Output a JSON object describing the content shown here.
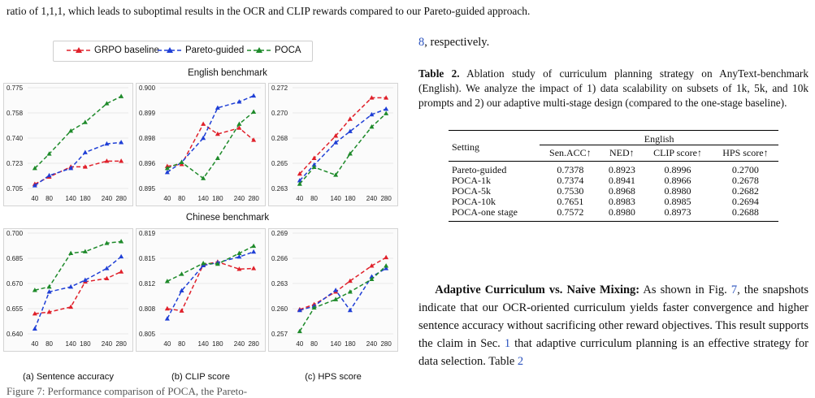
{
  "top_text": "ratio of 1,1,1, which leads to suboptimal results in the OCR and CLIP rewards compared to our Pareto-guided approach.",
  "legend": [
    {
      "label": "GRPO baseline",
      "color": "#e0202a"
    },
    {
      "label": "Pareto-guided",
      "color": "#1f3fd6"
    },
    {
      "label": "POCA",
      "color": "#1e8a2a"
    }
  ],
  "benchmarks": {
    "english": "English benchmark",
    "chinese": "Chinese benchmark"
  },
  "x_ticks": [
    "40",
    "80",
    "140",
    "180",
    "240",
    "280"
  ],
  "sub_captions": [
    "(a) Sentence accuracy",
    "(b) CLIP score",
    "(c) HPS score"
  ],
  "figure_caption": "Figure 7: Performance comparison of POCA, the Pareto-",
  "chart_data": [
    {
      "type": "line",
      "benchmark": "English benchmark",
      "metric": "Sentence accuracy",
      "x": [
        40,
        80,
        140,
        180,
        240,
        280
      ],
      "yticks": [
        "0.775",
        "0.758",
        "0.740",
        "0.723",
        "0.705"
      ],
      "ylim": [
        0.705,
        0.775
      ],
      "series": [
        {
          "name": "GRPO baseline",
          "values": [
            0.708,
            0.713,
            0.72,
            0.72,
            0.724,
            0.724
          ]
        },
        {
          "name": "Pareto-guided",
          "values": [
            0.707,
            0.714,
            0.719,
            0.73,
            0.736,
            0.737
          ]
        },
        {
          "name": "POCA",
          "values": [
            0.719,
            0.729,
            0.745,
            0.751,
            0.764,
            0.769
          ]
        }
      ]
    },
    {
      "type": "line",
      "benchmark": "English benchmark",
      "metric": "CLIP score",
      "x": [
        40,
        80,
        140,
        180,
        240,
        280
      ],
      "yticks": [
        "0.900",
        "0.899",
        "0.898",
        "0.896",
        "0.895"
      ],
      "ylim": [
        0.895,
        0.9
      ],
      "series": [
        {
          "name": "GRPO baseline",
          "values": [
            0.8961,
            0.8962,
            0.8982,
            0.8977,
            0.898,
            0.8974
          ]
        },
        {
          "name": "Pareto-guided",
          "values": [
            0.8958,
            0.8963,
            0.8975,
            0.899,
            0.8993,
            0.8996
          ]
        },
        {
          "name": "POCA",
          "values": [
            0.896,
            0.8963,
            0.8955,
            0.8965,
            0.8982,
            0.8988
          ]
        }
      ]
    },
    {
      "type": "line",
      "benchmark": "English benchmark",
      "metric": "HPS score",
      "x": [
        40,
        80,
        140,
        180,
        240,
        280
      ],
      "yticks": [
        "0.272",
        "0.270",
        "0.268",
        "0.265",
        "0.263"
      ],
      "ylim": [
        0.263,
        0.272
      ],
      "series": [
        {
          "name": "GRPO baseline",
          "values": [
            0.2643,
            0.2657,
            0.2677,
            0.2692,
            0.2711,
            0.2711
          ]
        },
        {
          "name": "Pareto-guided",
          "values": [
            0.2637,
            0.2651,
            0.2671,
            0.2681,
            0.2696,
            0.2701
          ]
        },
        {
          "name": "POCA",
          "values": [
            0.2634,
            0.2649,
            0.2642,
            0.2661,
            0.2685,
            0.2697
          ]
        }
      ]
    },
    {
      "type": "line",
      "benchmark": "Chinese benchmark",
      "metric": "Sentence accuracy",
      "x": [
        40,
        80,
        140,
        180,
        240,
        280
      ],
      "yticks": [
        "0.700",
        "0.685",
        "0.670",
        "0.655",
        "0.640"
      ],
      "ylim": [
        0.64,
        0.7
      ],
      "series": [
        {
          "name": "GRPO baseline",
          "values": [
            0.652,
            0.653,
            0.656,
            0.671,
            0.673,
            0.677
          ]
        },
        {
          "name": "Pareto-guided",
          "values": [
            0.643,
            0.665,
            0.668,
            0.672,
            0.679,
            0.686
          ]
        },
        {
          "name": "POCA",
          "values": [
            0.666,
            0.668,
            0.688,
            0.689,
            0.694,
            0.695
          ]
        }
      ]
    },
    {
      "type": "line",
      "benchmark": "Chinese benchmark",
      "metric": "CLIP score",
      "x": [
        40,
        80,
        140,
        180,
        240,
        280
      ],
      "yticks": [
        "0.819",
        "0.815",
        "0.812",
        "0.808",
        "0.805"
      ],
      "ylim": [
        0.805,
        0.819
      ],
      "series": [
        {
          "name": "GRPO baseline",
          "values": [
            0.8085,
            0.8082,
            0.8146,
            0.815,
            0.814,
            0.8141
          ]
        },
        {
          "name": "Pareto-guided",
          "values": [
            0.8071,
            0.811,
            0.8145,
            0.8149,
            0.8157,
            0.8164
          ]
        },
        {
          "name": "POCA",
          "values": [
            0.8123,
            0.8133,
            0.8148,
            0.8147,
            0.8162,
            0.8172
          ]
        }
      ]
    },
    {
      "type": "line",
      "benchmark": "Chinese benchmark",
      "metric": "HPS score",
      "x": [
        40,
        80,
        140,
        180,
        240,
        280
      ],
      "yticks": [
        "0.269",
        "0.266",
        "0.263",
        "0.260",
        "0.257"
      ],
      "ylim": [
        0.257,
        0.269
      ],
      "series": [
        {
          "name": "GRPO baseline",
          "values": [
            0.2599,
            0.2605,
            0.262,
            0.2633,
            0.2651,
            0.2661
          ]
        },
        {
          "name": "Pareto-guided",
          "values": [
            0.2598,
            0.2603,
            0.2622,
            0.2598,
            0.2638,
            0.2648
          ]
        },
        {
          "name": "POCA",
          "values": [
            0.2573,
            0.2601,
            0.2611,
            0.262,
            0.2635,
            0.2651
          ]
        }
      ]
    }
  ],
  "right": {
    "continuation": ", respectively.",
    "continuation_ref": "8",
    "table_caption_label": "Table 2.",
    "table_caption_text": "Ablation study of curriculum planning strategy on AnyText-benchmark (English). We analyze the impact of 1) data scalability on subsets of 1k, 5k, and 10k prompts and 2) our adaptive multi-stage design (compared to the one-stage baseline).",
    "table": {
      "setting_header": "Setting",
      "group_header": "English",
      "columns": [
        "Sen.ACC↑",
        "NED↑",
        "CLIP score↑",
        "HPS score↑"
      ],
      "rows": [
        [
          "Pareto-guided",
          "0.7378",
          "0.8923",
          "0.8996",
          "0.2700"
        ],
        [
          "POCA-1k",
          "0.7374",
          "0.8941",
          "0.8966",
          "0.2678"
        ],
        [
          "POCA-5k",
          "0.7530",
          "0.8968",
          "0.8980",
          "0.2682"
        ],
        [
          "POCA-10k",
          "0.7651",
          "0.8983",
          "0.8985",
          "0.2694"
        ],
        [
          "POCA-one stage",
          "0.7572",
          "0.8980",
          "0.8973",
          "0.2688"
        ]
      ]
    },
    "para_title": "Adaptive Curriculum vs. Naive Mixing:",
    "para_1": " As shown in Fig. ",
    "para_ref1": "7",
    "para_2": ", the snapshots indicate that our OCR-oriented curriculum yields faster convergence and higher sentence accuracy without sacrificing other reward objectives. This result supports the claim in Sec. ",
    "para_ref2": "1",
    "para_3": " that adaptive curriculum planning is an effective strategy for data selection. Table ",
    "para_ref3": "2"
  }
}
